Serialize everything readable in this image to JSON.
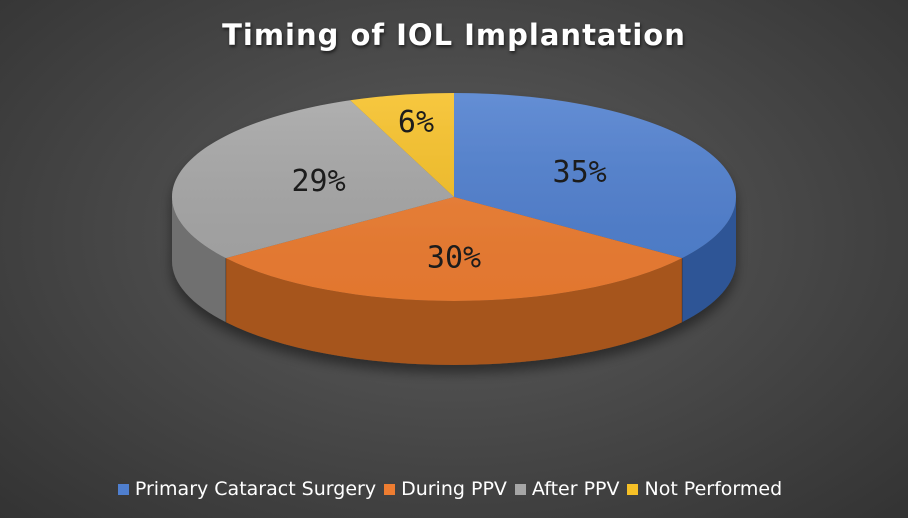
{
  "chart_data": {
    "type": "pie",
    "title": "Timing of IOL Implantation",
    "categories": [
      "Primary Cataract Surgery",
      "During PPV",
      "After PPV",
      "Not Performed"
    ],
    "values": [
      35,
      30,
      29,
      6
    ],
    "labels": [
      "35%",
      "30%",
      "29%",
      "6%"
    ],
    "colors": [
      "#4f7fcf",
      "#ee7d31",
      "#a6a6a6",
      "#f6c026"
    ],
    "side_colors": [
      "#2d5596",
      "#a6541c",
      "#6f6f6f",
      "#b08a16"
    ],
    "legend_position": "bottom",
    "start_angle_deg": -90,
    "direction": "clockwise"
  }
}
